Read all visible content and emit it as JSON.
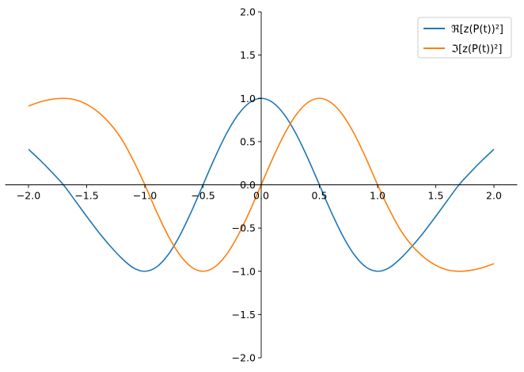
{
  "chart_data": {
    "type": "line",
    "title": "",
    "xlabel": "",
    "ylabel": "",
    "xlim": [
      -2.2,
      2.2
    ],
    "ylim": [
      -2.0,
      2.0
    ],
    "grid": false,
    "spines": "centered",
    "legend_position": "top-right",
    "xticks": [
      "-2.0",
      "-1.5",
      "-1.0",
      "-0.5",
      "0.0",
      "0.5",
      "1.0",
      "1.5",
      "2.0"
    ],
    "yticks": [
      "-2.0",
      "-1.5",
      "-1.0",
      "-0.5",
      "0.0",
      "0.5",
      "1.0",
      "1.5",
      "2.0"
    ],
    "x": [
      -2.0,
      -1.9,
      -1.8,
      -1.7,
      -1.6,
      -1.5,
      -1.4,
      -1.3,
      -1.2,
      -1.1,
      -1.0,
      -0.9,
      -0.8,
      -0.7,
      -0.6,
      -0.5,
      -0.4,
      -0.3,
      -0.2,
      -0.1,
      0.0,
      0.1,
      0.2,
      0.3,
      0.4,
      0.5,
      0.6,
      0.7,
      0.8,
      0.9,
      1.0,
      1.1,
      1.2,
      1.3,
      1.4,
      1.5,
      1.6,
      1.7,
      1.8,
      1.9,
      2.0
    ],
    "series": [
      {
        "name": "ℜ[z(P(t))²]",
        "color": "#1f77b4",
        "values": [
          0.411,
          0.284,
          0.147,
          0,
          -0.181,
          -0.365,
          -0.543,
          -0.705,
          -0.848,
          -0.959,
          -1,
          -0.951,
          -0.809,
          -0.588,
          -0.309,
          0,
          0.309,
          0.588,
          0.809,
          0.951,
          1,
          0.951,
          0.809,
          0.588,
          0.309,
          0,
          -0.309,
          -0.588,
          -0.809,
          -0.951,
          -1,
          -0.959,
          -0.848,
          -0.705,
          -0.543,
          -0.365,
          -0.181,
          0,
          0.147,
          0.284,
          0.411
        ]
      },
      {
        "name": "ℑ[z(P(t))²]",
        "color": "#ff7f0e",
        "values": [
          0.912,
          0.959,
          0.989,
          1,
          0.984,
          0.931,
          0.84,
          0.709,
          0.529,
          0.284,
          0,
          -0.309,
          -0.588,
          -0.809,
          -0.951,
          -1,
          -0.951,
          -0.809,
          -0.588,
          -0.309,
          0,
          0.309,
          0.588,
          0.809,
          0.951,
          1,
          0.951,
          0.809,
          0.588,
          0.309,
          0,
          -0.284,
          -0.529,
          -0.709,
          -0.84,
          -0.931,
          -0.984,
          -1,
          -0.989,
          -0.959,
          -0.912
        ]
      }
    ]
  }
}
